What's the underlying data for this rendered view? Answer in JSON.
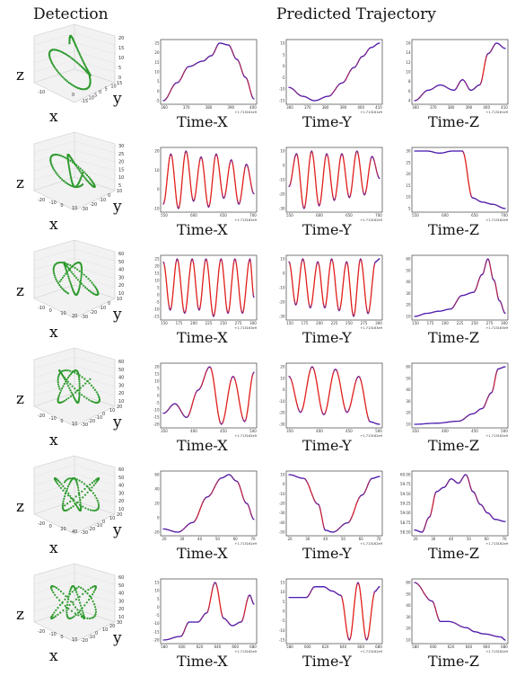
{
  "header": {
    "detection": "Detection",
    "predicted": "Predicted Trajectory"
  },
  "axis_letters": {
    "x": "x",
    "y": "y",
    "z": "z"
  },
  "colors": {
    "trajectory_3d": "#2e9a2e",
    "pred_start": "#4b1fb5",
    "pred_end": "#e0201c"
  },
  "rows": [
    {
      "det": {
        "zticks": [
          "20",
          "15",
          "10",
          "5",
          "0"
        ],
        "xticks": [
          "-10",
          "0"
        ],
        "yticks": [
          "-15",
          "-10",
          "-5",
          "0",
          "5",
          "10",
          "15"
        ]
      },
      "plots": [
        {
          "label": "Time-X",
          "xticks": [
            "360",
            "370",
            "380",
            "390",
            "400"
          ],
          "yticks": [
            "25",
            "20",
            "15",
            "10",
            "5",
            "0",
            "-5"
          ],
          "offset": "+1.713161e9"
        },
        {
          "label": "Time-Y",
          "xticks": [
            "360",
            "370",
            "380",
            "390",
            "400",
            "410"
          ],
          "yticks": [
            "10",
            "5",
            "0",
            "-5",
            "-10",
            "-15"
          ],
          "offset": "+1.713161e9"
        },
        {
          "label": "Time-Z",
          "xticks": [
            "360",
            "370",
            "380",
            "390",
            "400",
            "410"
          ],
          "yticks": [
            "16",
            "14",
            "12",
            "10",
            "8",
            "6",
            "4"
          ],
          "offset": "+1.713161e9"
        }
      ]
    },
    {
      "det": {
        "zticks": [
          "30",
          "25",
          "20",
          "15",
          "10",
          "5"
        ],
        "xticks": [
          "-20",
          "-10",
          "0",
          "10"
        ],
        "yticks": [
          "-30",
          "-20",
          "-10",
          "0",
          "10"
        ]
      },
      "plots": [
        {
          "label": "Time-X",
          "xticks": [
            "550",
            "600",
            "650",
            "700"
          ],
          "yticks": [
            "20",
            "10",
            "0",
            "-10"
          ],
          "offset": "+1.713162e9"
        },
        {
          "label": "Time-Y",
          "xticks": [
            "550",
            "600",
            "650",
            "700"
          ],
          "yticks": [
            "10",
            "0",
            "-10",
            "-20",
            "-30"
          ],
          "offset": "+1.713162e9"
        },
        {
          "label": "Time-Z",
          "xticks": [
            "550",
            "600",
            "650",
            "700"
          ],
          "yticks": [
            "30",
            "25",
            "20",
            "15",
            "10",
            "5"
          ],
          "offset": "+1.713162e9"
        }
      ]
    },
    {
      "det": {
        "zticks": [
          "60",
          "50",
          "40",
          "30",
          "20",
          "10"
        ],
        "xticks": [
          "-10",
          "0",
          "10",
          "20"
        ],
        "yticks": [
          "-30",
          "-20",
          "-10",
          "0",
          "10"
        ]
      },
      "plots": [
        {
          "label": "Time-X",
          "xticks": [
            "150",
            "175",
            "200",
            "225",
            "250",
            "275",
            "300"
          ],
          "yticks": [
            "25",
            "20",
            "15",
            "10",
            "5",
            "0",
            "-5",
            "-10",
            "-15"
          ],
          "offset": "+1.713163e9"
        },
        {
          "label": "Time-Y",
          "xticks": [
            "150",
            "175",
            "200",
            "225",
            "250",
            "275",
            "300"
          ],
          "yticks": [
            "10",
            "0",
            "-10",
            "-20",
            "-30"
          ],
          "offset": "+1.713163e9"
        },
        {
          "label": "Time-Z",
          "xticks": [
            "150",
            "175",
            "200",
            "225",
            "250",
            "275",
            "300"
          ],
          "yticks": [
            "60",
            "50",
            "40",
            "30",
            "20",
            "10"
          ],
          "offset": "+1.713163e9"
        }
      ]
    },
    {
      "det": {
        "zticks": [
          "60",
          "50",
          "40",
          "30",
          "20",
          "10"
        ],
        "xticks": [
          "-20",
          "-10",
          "0",
          "10"
        ],
        "yticks": [
          "-30",
          "-20",
          "-10",
          "0",
          "10",
          "20"
        ]
      },
      "plots": [
        {
          "label": "Time-X",
          "xticks": [
            "350",
            "400",
            "450",
            "500"
          ],
          "yticks": [
            "20",
            "15",
            "10",
            "5",
            "0",
            "-5",
            "-10",
            "-15",
            "-20"
          ],
          "offset": "+1.713162e9"
        },
        {
          "label": "Time-Y",
          "xticks": [
            "350",
            "400",
            "450",
            "500"
          ],
          "yticks": [
            "20",
            "10",
            "0",
            "-10",
            "-20",
            "-30"
          ],
          "offset": "+1.713162e9"
        },
        {
          "label": "Time-Z",
          "xticks": [
            "350",
            "400",
            "450",
            "500"
          ],
          "yticks": [
            "60",
            "50",
            "40",
            "30",
            "20",
            "10"
          ],
          "offset": "+1.713162e9"
        }
      ]
    },
    {
      "det": {
        "zticks": [
          "60",
          "50",
          "40",
          "30",
          "20",
          "10"
        ],
        "xticks": [
          "-20",
          "0",
          "20",
          "40"
        ],
        "yticks": [
          "-30",
          "-20",
          "-10",
          "0",
          "10",
          "20"
        ]
      },
      "plots": [
        {
          "label": "Time-X",
          "xticks": [
            "20",
            "30",
            "40",
            "50",
            "60",
            "70"
          ],
          "yticks": [
            "60",
            "40",
            "20",
            "0",
            "-20"
          ],
          "offset": "+1.713162e9"
        },
        {
          "label": "Time-Y",
          "xticks": [
            "20",
            "30",
            "40",
            "50",
            "60",
            "70"
          ],
          "yticks": [
            "10",
            "0",
            "-10",
            "-20",
            "-30",
            "-40",
            "-50"
          ],
          "offset": "+1.713162e9"
        },
        {
          "label": "Time-Z",
          "xticks": [
            "20",
            "30",
            "40",
            "50",
            "60",
            "70"
          ],
          "yticks": [
            "60.00",
            "59.75",
            "59.50",
            "59.25",
            "59.00",
            "58.75",
            "58.50"
          ],
          "offset": "+1.713162e9"
        }
      ]
    },
    {
      "det": {
        "zticks": [
          "60",
          "50",
          "40",
          "30",
          "20",
          "10"
        ],
        "xticks": [
          "-20",
          "-10",
          "0",
          "10"
        ],
        "yticks": [
          "-20",
          "-10",
          "0",
          "10",
          "20",
          "30"
        ]
      },
      "plots": [
        {
          "label": "Time-X",
          "xticks": [
            "580",
            "600",
            "620",
            "640",
            "660",
            "680"
          ],
          "yticks": [
            "15",
            "10",
            "5",
            "0",
            "-5",
            "-10",
            "-15",
            "-20"
          ],
          "offset": "+1.713162e9"
        },
        {
          "label": "Time-Y",
          "xticks": [
            "580",
            "600",
            "620",
            "640",
            "660",
            "680"
          ],
          "yticks": [
            "15",
            "10",
            "5",
            "0",
            "-5",
            "-10",
            "-15"
          ],
          "offset": "+1.713162e9"
        },
        {
          "label": "Time-Z",
          "xticks": [
            "580",
            "600",
            "620",
            "640",
            "660",
            "680"
          ],
          "yticks": [
            "60",
            "50",
            "40",
            "30",
            "20",
            "10"
          ],
          "offset": "+1.713162e9"
        }
      ]
    }
  ],
  "chart_data": [
    {
      "type": "line",
      "row": 1,
      "panel": "Time-X",
      "x": [
        357,
        365,
        372,
        380,
        385,
        390,
        395,
        400,
        405,
        410
      ],
      "y": [
        -5,
        5,
        14,
        17,
        20,
        27,
        26,
        18,
        8,
        -4
      ]
    },
    {
      "type": "line",
      "row": 1,
      "panel": "Time-Y",
      "x": [
        357,
        365,
        372,
        380,
        388,
        395,
        400,
        405,
        410
      ],
      "y": [
        -10,
        -14,
        -16,
        -14,
        -8,
        -1,
        4,
        8,
        10
      ]
    },
    {
      "type": "line",
      "row": 1,
      "panel": "Time-Z",
      "x": [
        357,
        365,
        372,
        380,
        385,
        390,
        395,
        400,
        405,
        410
      ],
      "y": [
        5,
        7,
        8,
        7,
        9,
        7,
        8,
        14,
        16,
        15
      ]
    },
    {
      "type": "line",
      "row": 2,
      "panel": "Time-X",
      "x": [
        525,
        540,
        555,
        570,
        585,
        600,
        615,
        630,
        645,
        660,
        675,
        690,
        705
      ],
      "y": [
        -12,
        22,
        -15,
        24,
        -10,
        20,
        -14,
        22,
        -8,
        18,
        -12,
        15,
        -5
      ]
    },
    {
      "type": "line",
      "row": 2,
      "panel": "Time-Y",
      "x": [
        525,
        540,
        555,
        570,
        585,
        600,
        615,
        630,
        645,
        660,
        675,
        690,
        705
      ],
      "y": [
        -12,
        12,
        -28,
        14,
        -26,
        12,
        -22,
        12,
        -20,
        14,
        -18,
        10,
        -6
      ]
    },
    {
      "type": "line",
      "row": 2,
      "panel": "Time-Z",
      "x": [
        525,
        550,
        575,
        600,
        620,
        640,
        660,
        680,
        705
      ],
      "y": [
        30,
        30,
        29,
        30,
        30,
        8,
        6,
        5,
        3
      ]
    },
    {
      "type": "line",
      "row": 3,
      "panel": "Time-X",
      "x": [
        148,
        160,
        172,
        185,
        198,
        210,
        222,
        235,
        248,
        260,
        272,
        285,
        298,
        305
      ],
      "y": [
        20,
        -10,
        22,
        -12,
        22,
        -10,
        22,
        -14,
        22,
        -12,
        22,
        -12,
        22,
        -2
      ]
    },
    {
      "type": "line",
      "row": 3,
      "panel": "Time-Y",
      "x": [
        148,
        160,
        172,
        185,
        198,
        210,
        222,
        235,
        248,
        260,
        272,
        285,
        298,
        305
      ],
      "y": [
        10,
        -20,
        12,
        -22,
        10,
        -22,
        12,
        -24,
        10,
        -28,
        12,
        -26,
        10,
        12
      ]
    },
    {
      "type": "line",
      "row": 3,
      "panel": "Time-Z",
      "x": [
        148,
        170,
        190,
        210,
        230,
        250,
        265,
        275,
        285,
        295,
        305
      ],
      "y": [
        5,
        8,
        10,
        12,
        25,
        28,
        45,
        60,
        40,
        20,
        8
      ]
    },
    {
      "type": "line",
      "row": 4,
      "panel": "Time-X",
      "x": [
        305,
        330,
        355,
        380,
        405,
        430,
        455,
        480,
        500
      ],
      "y": [
        -12,
        -5,
        -15,
        5,
        22,
        -20,
        15,
        -18,
        18
      ]
    },
    {
      "type": "line",
      "row": 4,
      "panel": "Time-Y",
      "x": [
        305,
        330,
        355,
        380,
        405,
        430,
        455,
        480,
        500
      ],
      "y": [
        10,
        -20,
        18,
        -22,
        16,
        -20,
        10,
        -28,
        -30
      ]
    },
    {
      "type": "line",
      "row": 4,
      "panel": "Time-Z",
      "x": [
        305,
        350,
        400,
        430,
        450,
        470,
        485,
        500
      ],
      "y": [
        5,
        6,
        8,
        15,
        20,
        35,
        58,
        60
      ]
    },
    {
      "type": "line",
      "row": 5,
      "panel": "Time-X",
      "x": [
        15,
        25,
        35,
        45,
        55,
        60,
        65,
        72,
        77
      ],
      "y": [
        -20,
        -25,
        -10,
        30,
        60,
        65,
        55,
        20,
        -5
      ]
    },
    {
      "type": "line",
      "row": 5,
      "panel": "Time-Y",
      "x": [
        15,
        25,
        35,
        40,
        45,
        55,
        65,
        72,
        77
      ],
      "y": [
        12,
        8,
        -20,
        -48,
        -50,
        -40,
        -10,
        8,
        10
      ]
    },
    {
      "type": "line",
      "row": 5,
      "panel": "Time-Z",
      "x": [
        15,
        20,
        25,
        30,
        35,
        40,
        45,
        50,
        55,
        60,
        65,
        70,
        77
      ],
      "y": [
        58.6,
        58.55,
        58.9,
        59.5,
        59.6,
        59.8,
        59.7,
        59.9,
        59.5,
        59.2,
        59.0,
        58.85,
        58.8
      ]
    },
    {
      "type": "line",
      "row": 6,
      "panel": "Time-X",
      "x": [
        580,
        600,
        610,
        620,
        630,
        640,
        650,
        660,
        670,
        680,
        685
      ],
      "y": [
        -20,
        -18,
        -10,
        -10,
        -5,
        12,
        -8,
        -12,
        -10,
        5,
        0
      ]
    },
    {
      "type": "line",
      "row": 6,
      "panel": "Time-Y",
      "x": [
        580,
        600,
        610,
        620,
        630,
        640,
        650,
        660,
        670,
        680,
        685
      ],
      "y": [
        5,
        5,
        10,
        10,
        8,
        6,
        -15,
        12,
        -15,
        8,
        10
      ]
    },
    {
      "type": "line",
      "row": 6,
      "panel": "Time-Z",
      "x": [
        580,
        600,
        610,
        620,
        640,
        650,
        660,
        680,
        685
      ],
      "y": [
        58,
        40,
        20,
        20,
        14,
        10,
        8,
        5,
        2
      ]
    }
  ]
}
